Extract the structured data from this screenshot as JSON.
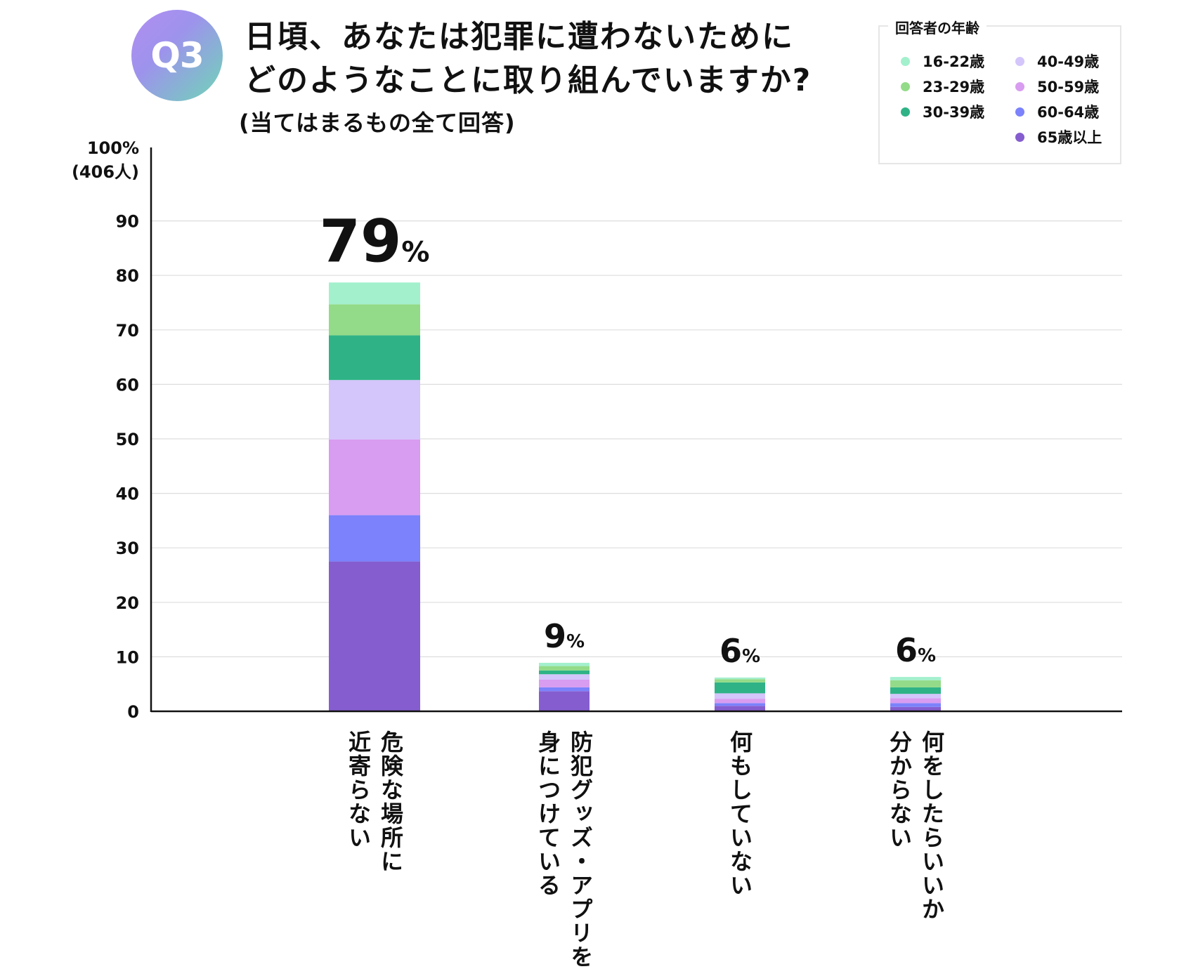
{
  "header": {
    "badge": "Q3",
    "title_line1": "日頃、あなたは犯罪に遭わないために",
    "title_line2": "どのようなことに取り組んでいますか?",
    "subtitle": "(当てはまるもの全て回答)"
  },
  "legend": {
    "title": "回答者の年齢",
    "placement": "top-right",
    "items": [
      {
        "label": "16-22歳",
        "color": "#a3f0cd"
      },
      {
        "label": "23-29歳",
        "color": "#93db88"
      },
      {
        "label": "30-39歳",
        "color": "#2fb386"
      },
      {
        "label": "40-49歳",
        "color": "#d4c5fb"
      },
      {
        "label": "50-59歳",
        "color": "#d89cf0"
      },
      {
        "label": "60-64歳",
        "color": "#7b82fb"
      },
      {
        "label": "65歳以上",
        "color": "#855dcf"
      }
    ]
  },
  "chart_data": {
    "type": "bar",
    "stacked": true,
    "ylabel_top": "100%",
    "ylabel_top2": "(406人)",
    "ylim": [
      0,
      100
    ],
    "yticks": [
      0,
      10,
      20,
      30,
      40,
      50,
      60,
      70,
      80,
      90
    ],
    "grid": true,
    "categories": [
      "危険な場所に\n近寄らない",
      "防犯グッズ・アプリを\n身につけている",
      "何もしていない",
      "何をしたらいいか\n分からない"
    ],
    "totals_labels": [
      {
        "num": "79",
        "unit": "%"
      },
      {
        "num": "9",
        "unit": "%"
      },
      {
        "num": "6",
        "unit": "%"
      },
      {
        "num": "6",
        "unit": "%"
      }
    ],
    "series": [
      {
        "name": "65歳以上",
        "color": "#855dcf",
        "values": [
          27.5,
          3.7,
          1.0,
          0.8
        ]
      },
      {
        "name": "60-64歳",
        "color": "#7b82fb",
        "values": [
          8.5,
          0.7,
          0.5,
          0.7
        ]
      },
      {
        "name": "50-59歳",
        "color": "#d89cf0",
        "values": [
          13.9,
          1.4,
          0.8,
          0.9
        ]
      },
      {
        "name": "40-49歳",
        "color": "#d4c5fb",
        "values": [
          10.9,
          1.0,
          1.0,
          0.8
        ]
      },
      {
        "name": "30-39歳",
        "color": "#2fb386",
        "values": [
          8.2,
          0.7,
          2.0,
          1.2
        ]
      },
      {
        "name": "23-29歳",
        "color": "#93db88",
        "values": [
          5.7,
          0.8,
          0.6,
          1.3
        ]
      },
      {
        "name": "16-22歳",
        "color": "#a3f0cd",
        "values": [
          4.0,
          0.6,
          0.3,
          0.6
        ]
      }
    ]
  }
}
